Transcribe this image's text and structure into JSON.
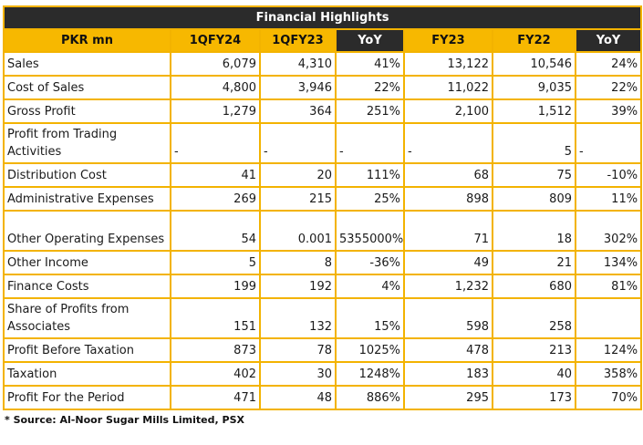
{
  "title": "Financial Highlights",
  "columns": [
    "PKR mn",
    "1QFY24",
    "1QFY23",
    "YoY",
    "FY23",
    "FY22",
    "YoY"
  ],
  "rows": [
    {
      "label": "Sales",
      "v": [
        "6,079",
        "4,310",
        "41%",
        "13,122",
        "10,546",
        "24%"
      ]
    },
    {
      "label": "Cost of Sales",
      "v": [
        "4,800",
        "3,946",
        "22%",
        "11,022",
        "9,035",
        "22%"
      ]
    },
    {
      "label": "Gross Profit",
      "v": [
        "1,279",
        "364",
        "251%",
        "2,100",
        "1,512",
        "39%"
      ]
    },
    {
      "label": "Profit from Trading Activities",
      "v": [
        "-",
        "-",
        "-",
        "-",
        "5",
        "-"
      ]
    },
    {
      "label": "Distribution Cost",
      "v": [
        "41",
        "20",
        "111%",
        "68",
        "75",
        "-10%"
      ]
    },
    {
      "label": "Administrative Expenses",
      "v": [
        "269",
        "215",
        "25%",
        "898",
        "809",
        "11%"
      ]
    },
    {
      "label": "Other Operating Expenses",
      "v": [
        "54",
        "0.001",
        "5355000%",
        "71",
        "18",
        "302%"
      ]
    },
    {
      "label": "Other Income",
      "v": [
        "5",
        "8",
        "-36%",
        "49",
        "21",
        "134%"
      ]
    },
    {
      "label": "Finance Costs",
      "v": [
        "199",
        "192",
        "4%",
        "1,232",
        "680",
        "81%"
      ]
    },
    {
      "label": "Share of Profits from Associates",
      "v": [
        "151",
        "132",
        "15%",
        "598",
        "258",
        ""
      ]
    },
    {
      "label": "Profit Before Taxation",
      "v": [
        "873",
        "78",
        "1025%",
        "478",
        "213",
        "124%"
      ]
    },
    {
      "label": "Taxation",
      "v": [
        "402",
        "30",
        "1248%",
        "183",
        "40",
        "358%"
      ]
    },
    {
      "label": "Profit For the Period",
      "v": [
        "471",
        "48",
        "886%",
        "295",
        "173",
        "70%"
      ]
    }
  ],
  "source": "* Source: Al-Noor Sugar Mills Limited, PSX",
  "colors": {
    "accent": "#f7b800",
    "dark": "#2b2b2b",
    "border": "#f3b300"
  }
}
